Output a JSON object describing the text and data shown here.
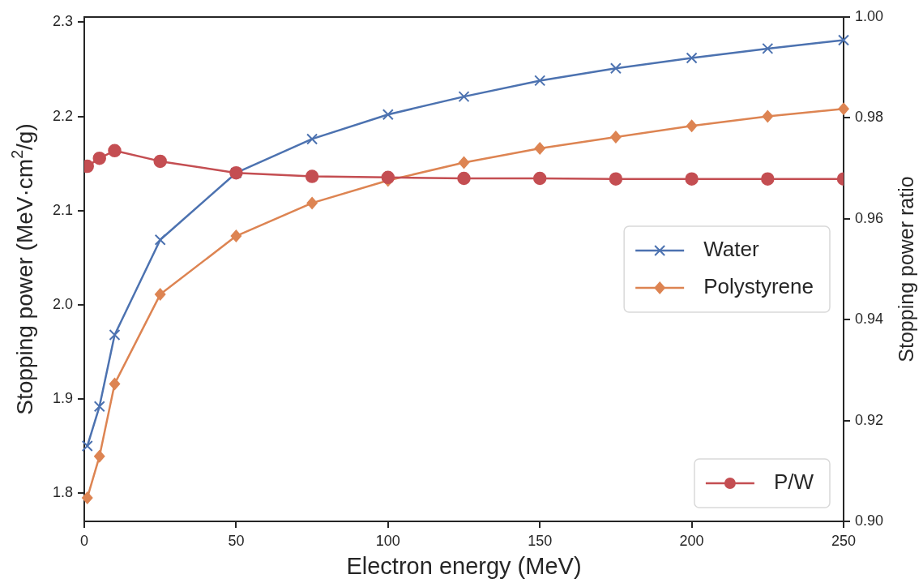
{
  "chart_data": {
    "type": "line",
    "xlabel": "Electron energy (MeV)",
    "ylabel": "Stopping power (MeV·cm$^{2}$/g)",
    "y2label": "Stopping power ratio",
    "x": [
      1,
      5,
      10,
      25,
      50,
      75,
      100,
      125,
      150,
      175,
      200,
      225,
      250
    ],
    "series": [
      {
        "name": "Water",
        "color": "#4c72b0",
        "marker": "cross",
        "values": [
          1.85,
          1.892,
          1.968,
          2.069,
          2.14,
          2.176,
          2.202,
          2.221,
          2.238,
          2.251,
          2.262,
          2.272,
          2.281
        ]
      },
      {
        "name": "Polystyrene",
        "color": "#dd8452",
        "marker": "diamond",
        "values": [
          1.795,
          1.839,
          1.916,
          2.011,
          2.073,
          2.108,
          2.132,
          2.151,
          2.166,
          2.178,
          2.19,
          2.2,
          2.208
        ]
      },
      {
        "name": "P/W",
        "color": "#c44e52",
        "marker": "circle",
        "axis": "y2",
        "values": [
          0.9704,
          0.972,
          0.9735,
          0.9714,
          0.9691,
          0.9684,
          0.9682,
          0.968,
          0.968,
          0.9679,
          0.9679,
          0.9679,
          0.9679
        ]
      }
    ],
    "xlim": [
      0,
      250
    ],
    "xticks": [
      0,
      50,
      100,
      150,
      200,
      250
    ],
    "ylim": [
      1.77,
      2.3055
    ],
    "yticks": [
      {
        "value": 1.8,
        "label": "1.8"
      },
      {
        "value": 1.9,
        "label": "1.9"
      },
      {
        "value": 2.0,
        "label": "2.0"
      },
      {
        "value": 2.1,
        "label": "2.1"
      },
      {
        "value": 2.2,
        "label": "2.2"
      },
      {
        "value": 2.3,
        "label": "2.3"
      }
    ],
    "y2lim": [
      0.9,
      1.0
    ],
    "y2ticks": [
      {
        "value": 0.9,
        "label": "0.90"
      },
      {
        "value": 0.92,
        "label": "0.92"
      },
      {
        "value": 0.94,
        "label": "0.94"
      },
      {
        "value": 0.96,
        "label": "0.96"
      },
      {
        "value": 0.98,
        "label": "0.98"
      },
      {
        "value": 1.0,
        "label": "1.00"
      }
    ],
    "legend": "right",
    "line_style": "solid"
  }
}
